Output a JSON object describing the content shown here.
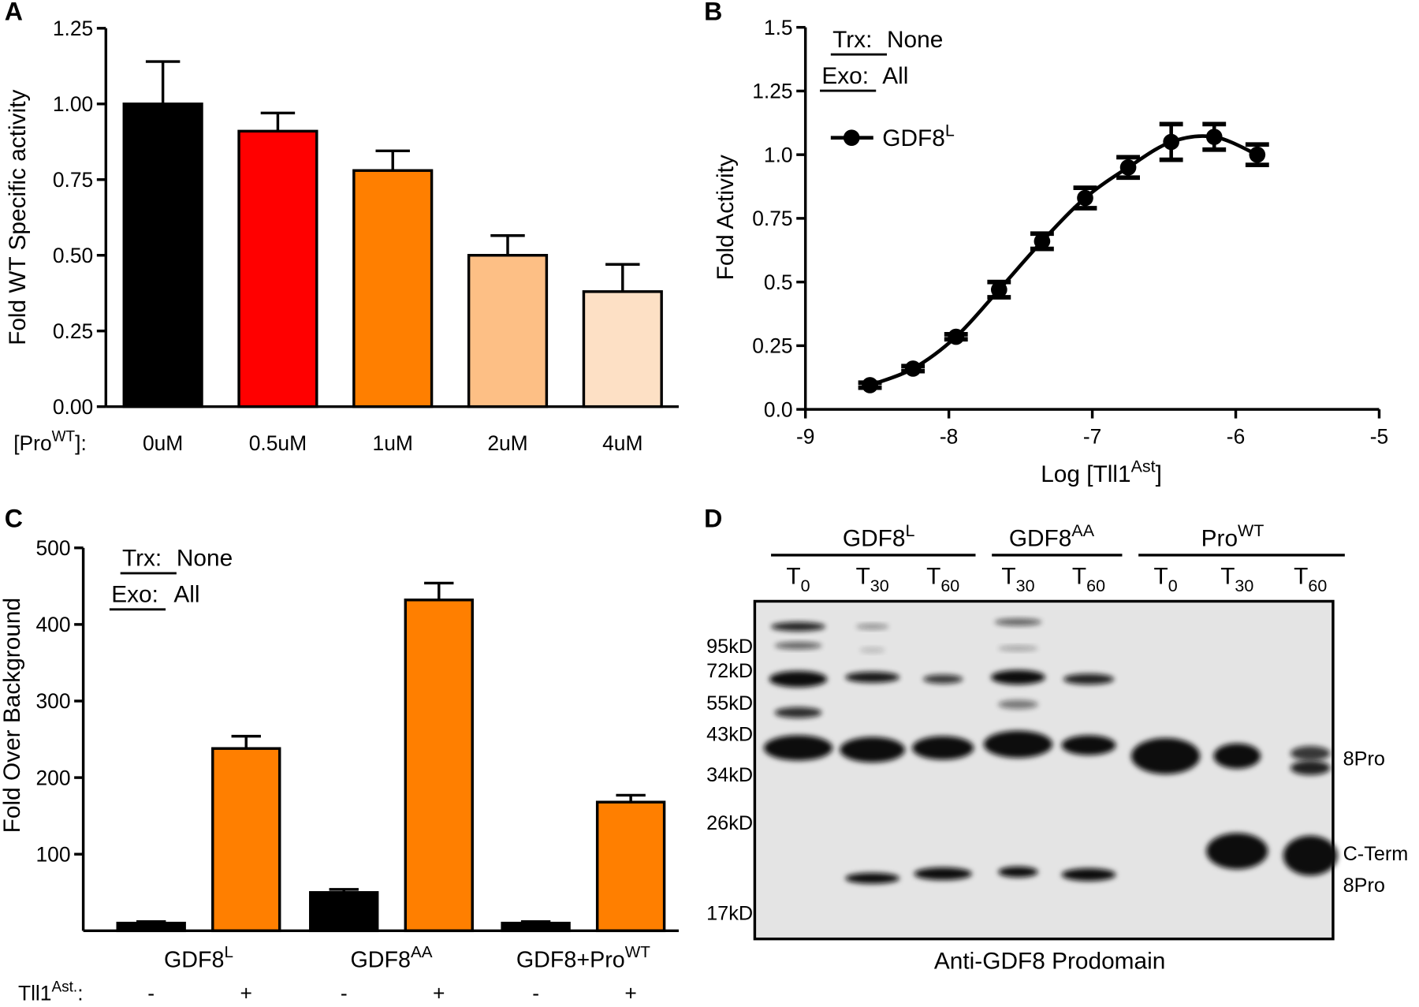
{
  "chart_data": [
    {
      "type": "bar",
      "panel": "A",
      "ylabel": "Fold  WT Specific activity",
      "x_prefix": [
        "[Pro",
        "WT",
        "]:"
      ],
      "categories": [
        "0uM",
        "0.5uM",
        "1uM",
        "2uM",
        "4uM"
      ],
      "values": [
        1.0,
        0.91,
        0.78,
        0.5,
        0.38
      ],
      "errors": [
        0.14,
        0.06,
        0.065,
        0.065,
        0.09
      ],
      "colors": [
        "#000000",
        "#ff0000",
        "#ff7f00",
        "#fdbf85",
        "#fde0c5"
      ],
      "ylim": [
        0,
        1.25
      ],
      "yticks": [
        {
          "value": 0,
          "label": "0.00"
        },
        0.25,
        {
          "value": 0.5,
          "label": "0.50"
        },
        0.75,
        {
          "value": 1,
          "label": "1.00"
        },
        1.25
      ]
    },
    {
      "type": "scatter",
      "panel": "B",
      "ylabel": "Fold  Activity",
      "xlabel": [
        "Log [Tll1",
        "Ast",
        "]"
      ],
      "annotations": [
        {
          "key": "Trx:",
          "text": "None"
        },
        {
          "key": "Exo:",
          "text": "All"
        }
      ],
      "series": [
        {
          "name": "GDF8",
          "name_sup": "L",
          "color": "#000000",
          "x": [
            -8.55,
            -8.25,
            -7.95,
            -7.65,
            -7.35,
            -7.05,
            -6.75,
            -6.45,
            -6.15,
            -5.85
          ],
          "values": [
            0.095,
            0.16,
            0.285,
            0.47,
            0.66,
            0.83,
            0.95,
            1.05,
            1.07,
            1.0
          ],
          "errors": [
            0.01,
            0.01,
            0.01,
            0.03,
            0.03,
            0.04,
            0.04,
            0.07,
            0.05,
            0.04
          ]
        }
      ],
      "xlim": [
        -9,
        -5
      ],
      "xticks": [
        -9,
        -8,
        -7,
        -6,
        -5
      ],
      "ylim": [
        0,
        1.5
      ],
      "yticks": [
        {
          "value": 0,
          "label": "0.0"
        },
        0.25,
        0.5,
        0.75,
        {
          "value": 1,
          "label": "1.0"
        },
        1.25,
        1.5
      ]
    },
    {
      "type": "bar",
      "panel": "C",
      "ylabel": "Fold Over Background",
      "annotations": [
        {
          "key": "Trx:",
          "text": "None"
        },
        {
          "key": "Exo:",
          "text": "All"
        }
      ],
      "groups": [
        [
          "GDF8",
          "L"
        ],
        [
          "GDF8",
          "AA"
        ],
        [
          "GDF8+Pro",
          "WT"
        ]
      ],
      "x_prefix": [
        "Tll1",
        "Ast.",
        ":"
      ],
      "categories": [
        "-",
        "+",
        "-",
        "+",
        "-",
        "+"
      ],
      "values": [
        10,
        238,
        50,
        432,
        10,
        168
      ],
      "errors": [
        2,
        16,
        4,
        22,
        2,
        9
      ],
      "colors": [
        "#000000",
        "#ff7f00",
        "#000000",
        "#ff7f00",
        "#000000",
        "#ff7f00"
      ],
      "ylim": [
        0,
        500
      ],
      "yticks": [
        100,
        200,
        300,
        400,
        500
      ]
    }
  ],
  "blot": {
    "panel": "D",
    "groups": [
      [
        "GDF8",
        "L"
      ],
      [
        "GDF8",
        "AA"
      ],
      [
        "Pro",
        "WT"
      ]
    ],
    "lanes": [
      [
        "T",
        "0"
      ],
      [
        "T",
        "30"
      ],
      [
        "T",
        "60"
      ],
      [
        "T",
        "30"
      ],
      [
        "T",
        "60"
      ],
      [
        "T",
        "0"
      ],
      [
        "T",
        "30"
      ],
      [
        "T",
        "60"
      ]
    ],
    "markers": [
      "95kD",
      "72kD",
      "55kD",
      "43kD",
      "34kD",
      "26kD",
      "17kD"
    ],
    "right_labels": [
      "8Pro",
      "C-Term",
      "8Pro"
    ],
    "caption": "Anti-GDF8 Prodomain"
  }
}
